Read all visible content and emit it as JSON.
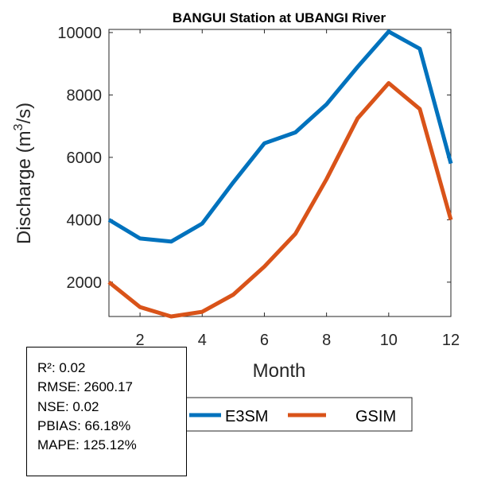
{
  "chart_data": {
    "type": "line",
    "title": "BANGUI  Station at  UBANGI  River",
    "xlabel": "Month",
    "ylabel": "Discharge (m³/s)",
    "ylabel_parts": {
      "pre": "Discharge (m",
      "sup": "3",
      "post": "/s)"
    },
    "xlim": [
      1,
      12
    ],
    "ylim": [
      900,
      10100
    ],
    "xticks": [
      2,
      4,
      6,
      8,
      10,
      12
    ],
    "yticks": [
      2000,
      4000,
      6000,
      8000,
      10000
    ],
    "x": [
      1,
      2,
      3,
      4,
      5,
      6,
      7,
      8,
      9,
      10,
      11,
      12
    ],
    "series": [
      {
        "name": "E3SM",
        "color": "#0072BD",
        "values": [
          4000,
          3400,
          3300,
          3880,
          5200,
          6450,
          6800,
          7700,
          8900,
          10030,
          9480,
          5800
        ]
      },
      {
        "name": "GSIM",
        "color": "#D95319",
        "values": [
          2000,
          1200,
          900,
          1050,
          1600,
          2500,
          3550,
          5300,
          7250,
          8380,
          7550,
          4000
        ]
      }
    ],
    "legend": [
      "E3SM",
      "GSIM"
    ],
    "legend_position": "bottom-center"
  },
  "stats": {
    "r2": "R²: 0.02",
    "rmse": "RMSE: 2600.17",
    "nse": "NSE: 0.02",
    "pbias": "PBIAS: 66.18%",
    "mape": "MAPE: 125.12%"
  }
}
